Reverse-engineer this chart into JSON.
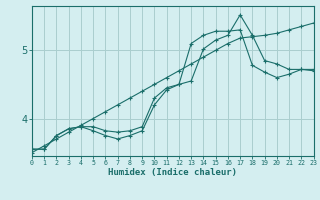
{
  "background_color": "#d4eef0",
  "grid_color": "#aacece",
  "line_color": "#1a6e6a",
  "xlabel": "Humidex (Indice chaleur)",
  "xlim": [
    0,
    23
  ],
  "ylim": [
    3.45,
    5.65
  ],
  "ytick_vals": [
    4,
    5
  ],
  "ytick_labels": [
    "4",
    "5"
  ],
  "xtick_vals": [
    0,
    1,
    2,
    3,
    4,
    5,
    6,
    7,
    8,
    9,
    10,
    11,
    12,
    13,
    14,
    15,
    16,
    17,
    18,
    19,
    20,
    21,
    22,
    23
  ],
  "s1x": [
    0,
    1,
    2,
    3,
    4,
    5,
    6,
    7,
    8,
    9,
    10,
    11,
    12,
    13,
    14,
    15,
    16,
    17,
    18,
    19,
    20,
    21,
    22,
    23
  ],
  "s1y": [
    3.5,
    3.6,
    3.7,
    3.8,
    3.9,
    4.0,
    4.1,
    4.2,
    4.3,
    4.4,
    4.5,
    4.6,
    4.7,
    4.8,
    4.9,
    5.0,
    5.1,
    5.18,
    5.2,
    5.22,
    5.25,
    5.3,
    5.35,
    5.4
  ],
  "s2x": [
    0,
    1,
    2,
    3,
    4,
    5,
    6,
    7,
    8,
    9,
    10,
    11,
    12,
    13,
    14,
    15,
    16,
    17,
    18,
    19,
    20,
    21,
    22,
    23
  ],
  "s2y": [
    3.55,
    3.55,
    3.75,
    3.85,
    3.88,
    3.82,
    3.75,
    3.7,
    3.75,
    3.82,
    4.2,
    4.42,
    4.5,
    5.1,
    5.22,
    5.28,
    5.28,
    5.3,
    4.78,
    4.68,
    4.6,
    4.65,
    4.72,
    4.7
  ],
  "s3x": [
    0,
    1,
    2,
    3,
    4,
    5,
    6,
    7,
    8,
    9,
    10,
    11,
    12,
    13,
    14,
    15,
    16,
    17,
    18,
    19,
    20,
    21,
    22,
    23
  ],
  "s3y": [
    3.55,
    3.55,
    3.75,
    3.85,
    3.88,
    3.88,
    3.82,
    3.8,
    3.82,
    3.88,
    4.3,
    4.45,
    4.5,
    4.55,
    5.02,
    5.15,
    5.22,
    5.52,
    5.22,
    4.85,
    4.8,
    4.72,
    4.72,
    4.72
  ]
}
